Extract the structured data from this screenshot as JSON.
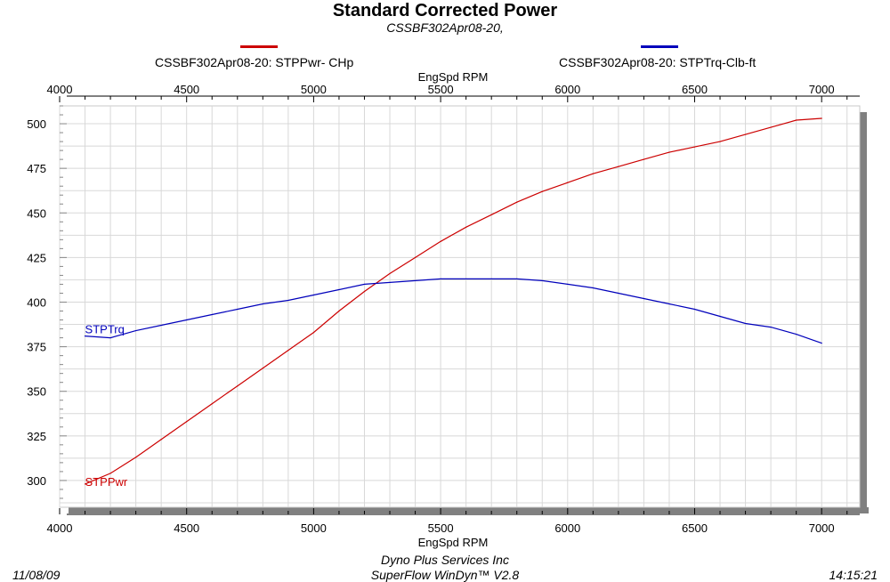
{
  "title": "Standard Corrected Power",
  "subtitle": "CSSBF302Apr08-20,",
  "legend": [
    {
      "label": "CSSBF302Apr08-20: STPPwr- CHp",
      "color": "#cc0000"
    },
    {
      "label": "CSSBF302Apr08-20: STPTrq-Clb-ft",
      "color": "#0000bb"
    }
  ],
  "footer": {
    "date": "11/08/09",
    "company": "Dyno Plus Services Inc",
    "software": "SuperFlow WinDyn™ V2.8",
    "time": "14:15:21"
  },
  "chart_data": {
    "type": "line",
    "title": "Standard Corrected Power",
    "xlabel": "EngSpd  RPM",
    "ylabel": "",
    "xlim": [
      4000,
      7150
    ],
    "ylim": [
      285,
      510
    ],
    "x_ticks": [
      4000,
      4500,
      5000,
      5500,
      6000,
      6500,
      7000
    ],
    "y_ticks": [
      300,
      325,
      350,
      375,
      400,
      425,
      450,
      475,
      500
    ],
    "grid": true,
    "series": [
      {
        "name": "CSSBF302Apr08-20: STPPwr- CHp",
        "label": "STPPwr",
        "color": "#cc0000",
        "x": [
          4100,
          4200,
          4300,
          4400,
          4500,
          4600,
          4700,
          4800,
          4900,
          5000,
          5100,
          5200,
          5300,
          5400,
          5500,
          5600,
          5700,
          5800,
          5900,
          6000,
          6100,
          6200,
          6300,
          6400,
          6500,
          6600,
          6700,
          6800,
          6900,
          7000
        ],
        "values": [
          298,
          304,
          313,
          323,
          333,
          343,
          353,
          363,
          373,
          383,
          395,
          406,
          416,
          425,
          434,
          442,
          449,
          456,
          462,
          467,
          472,
          476,
          480,
          484,
          487,
          490,
          494,
          498,
          502,
          503
        ]
      },
      {
        "name": "CSSBF302Apr08-20: STPTrq-Clb-ft",
        "label": "STPTrq",
        "color": "#0000bb",
        "x": [
          4100,
          4200,
          4300,
          4400,
          4500,
          4600,
          4700,
          4800,
          4900,
          5000,
          5100,
          5200,
          5300,
          5400,
          5500,
          5600,
          5700,
          5800,
          5900,
          6000,
          6100,
          6200,
          6300,
          6400,
          6500,
          6600,
          6700,
          6800,
          6900,
          7000
        ],
        "values": [
          381,
          380,
          384,
          387,
          390,
          393,
          396,
          399,
          401,
          404,
          407,
          410,
          411,
          412,
          413,
          413,
          413,
          413,
          412,
          410,
          408,
          405,
          402,
          399,
          396,
          392,
          388,
          386,
          382,
          377
        ]
      }
    ]
  }
}
